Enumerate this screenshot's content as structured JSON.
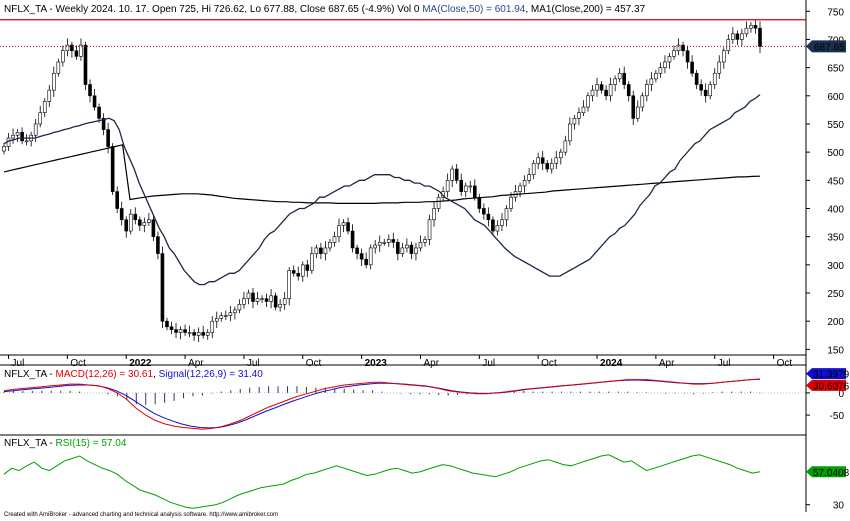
{
  "footer": "Created with AmiBroker - advanced charting and technical analysis software. http://www.amibroker.com",
  "colors": {
    "bull": "#ffffff",
    "bear": "#000000",
    "ma50": "#1a2a44",
    "ma200": "#000000",
    "resistance": "#e00000",
    "last_price_marker": "#1a3050",
    "macd": "#e00000",
    "signal": "#1010d0",
    "histogram": "#2a3a60",
    "rsi": "#00a000",
    "rsi_marker": "#00a000"
  },
  "chart_data": [
    {
      "type": "candlestick",
      "symbol": "NFLX_TA",
      "header": {
        "prefix": "NFLX_TA - Weekly 2024. 10. 17. Open 725, Hi 726.62, Lo 677.88, Close 687.65 (-4.9%) Vol 0 ",
        "ma50_text": "MA(Close,50) = 601.94",
        "ma200_text": ", MA1(Close,200) = 457.37"
      },
      "last_price_label": "687.65",
      "resistance_level": 735,
      "ylim": [
        140,
        770
      ],
      "y_ticks": [
        150,
        200,
        250,
        300,
        350,
        400,
        450,
        500,
        550,
        600,
        650,
        700,
        750
      ],
      "x_labels": [
        {
          "label": "Jul",
          "i": 1,
          "bold": false
        },
        {
          "label": "Oct",
          "i": 14,
          "bold": false
        },
        {
          "label": "2022",
          "i": 27,
          "bold": true
        },
        {
          "label": "Apr",
          "i": 40,
          "bold": false
        },
        {
          "label": "Jul",
          "i": 53,
          "bold": false
        },
        {
          "label": "Oct",
          "i": 66,
          "bold": false
        },
        {
          "label": "2023",
          "i": 79,
          "bold": true
        },
        {
          "label": "Apr",
          "i": 92,
          "bold": false
        },
        {
          "label": "Jul",
          "i": 105,
          "bold": false
        },
        {
          "label": "Oct",
          "i": 118,
          "bold": false
        },
        {
          "label": "2024",
          "i": 131,
          "bold": true
        },
        {
          "label": "Apr",
          "i": 144,
          "bold": false
        },
        {
          "label": "Jul",
          "i": 157,
          "bold": false
        },
        {
          "label": "Oct",
          "i": 170,
          "bold": false
        }
      ],
      "close": [
        510,
        525,
        530,
        535,
        520,
        520,
        530,
        550,
        570,
        590,
        610,
        640,
        660,
        680,
        690,
        680,
        670,
        690,
        620,
        600,
        580,
        560,
        540,
        510,
        430,
        400,
        380,
        360,
        390,
        380,
        370,
        375,
        380,
        350,
        320,
        200,
        190,
        185,
        180,
        185,
        180,
        180,
        175,
        180,
        175,
        180,
        200,
        205,
        210,
        210,
        215,
        220,
        230,
        240,
        250,
        235,
        240,
        240,
        235,
        245,
        225,
        230,
        240,
        290,
        285,
        280,
        300,
        290,
        320,
        330,
        320,
        330,
        340,
        350,
        370,
        375,
        360,
        330,
        320,
        310,
        300,
        330,
        335,
        340,
        340,
        345,
        340,
        320,
        330,
        335,
        320,
        330,
        340,
        345,
        380,
        400,
        420,
        430,
        450,
        470,
        450,
        430,
        440,
        440,
        420,
        400,
        390,
        380,
        360,
        370,
        380,
        400,
        420,
        430,
        440,
        450,
        460,
        480,
        490,
        480,
        470,
        480,
        490,
        500,
        520,
        550,
        560,
        570,
        580,
        600,
        610,
        620,
        610,
        600,
        620,
        630,
        640,
        620,
        600,
        560,
        580,
        600,
        620,
        630,
        640,
        650,
        660,
        670,
        680,
        690,
        680,
        660,
        640,
        620,
        610,
        600,
        620,
        640,
        660,
        680,
        700,
        710,
        700,
        710,
        720,
        725,
        720,
        687.65
      ],
      "ma50": [
        515,
        520,
        522,
        525,
        525,
        525,
        525,
        527,
        530,
        532,
        535,
        537,
        540,
        542,
        545,
        547,
        550,
        552,
        554,
        556,
        558,
        560,
        556,
        540,
        510,
        490,
        470,
        445,
        425,
        405,
        385,
        365,
        350,
        330,
        320,
        305,
        290,
        280,
        270,
        265,
        265,
        270,
        270,
        275,
        280,
        285,
        285,
        290,
        300,
        310,
        320,
        330,
        345,
        355,
        360,
        370,
        380,
        390,
        395,
        400,
        400,
        405,
        410,
        420,
        420,
        425,
        430,
        435,
        440,
        440,
        445,
        450,
        450,
        455,
        460,
        460,
        460,
        460,
        455,
        455,
        450,
        450,
        445,
        445,
        440,
        440,
        435,
        430,
        420,
        415,
        410,
        405,
        400,
        390,
        380,
        375,
        370,
        360,
        350,
        340,
        330,
        322,
        315,
        310,
        305,
        300,
        295,
        290,
        285,
        280,
        280,
        280,
        285,
        290,
        295,
        300,
        305,
        310,
        320,
        330,
        340,
        350,
        355,
        365,
        370,
        380,
        390,
        405,
        415,
        425,
        440,
        445,
        455,
        465,
        470,
        485,
        495,
        505,
        515,
        520,
        530,
        540,
        545,
        550,
        555,
        560,
        570,
        575,
        580,
        590,
        595,
        601.94
      ],
      "ma200": [
        465,
        468,
        471,
        474,
        477,
        480,
        483,
        486,
        489,
        492,
        495,
        498,
        501,
        504,
        507,
        510,
        513,
        416,
        418,
        420,
        422,
        423,
        424,
        425,
        426,
        426,
        426,
        425,
        424,
        422,
        420,
        418,
        417,
        416,
        415,
        414,
        413,
        412,
        412,
        411,
        411,
        410,
        410,
        410,
        410,
        409,
        409,
        409,
        409,
        409,
        409,
        410,
        410,
        410,
        411,
        411,
        411,
        412,
        412,
        413,
        414,
        415,
        417,
        418,
        419,
        420,
        421,
        423,
        424,
        425,
        426,
        427,
        428,
        429,
        431,
        432,
        433,
        434,
        435,
        436,
        437,
        438,
        439,
        440,
        441,
        442,
        443,
        444,
        445,
        446,
        447,
        448,
        449,
        450,
        451,
        452,
        453,
        454,
        455,
        456,
        456,
        457,
        457.37
      ],
      "panes": [
        {
          "id": "macd",
          "title_prefix": "NFLX_TA - ",
          "macd_text": "MACD(12,26) = 30.61",
          "signal_text": "Signal(12,26,9) = 31.40",
          "ylim": [
            -95,
            45
          ],
          "y_ticks": [
            -50,
            0
          ],
          "macd_label": "30.6076",
          "signal_label": "31.3979",
          "macd": [
            5,
            8,
            10,
            12,
            14,
            16,
            18,
            20,
            20,
            18,
            16,
            10,
            0,
            -15,
            -35,
            -50,
            -62,
            -70,
            -75,
            -78,
            -80,
            -82,
            -80,
            -76,
            -70,
            -62,
            -52,
            -42,
            -32,
            -24,
            -16,
            -8,
            -2,
            4,
            10,
            14,
            18,
            20,
            22,
            24,
            24,
            22,
            20,
            18,
            16,
            14,
            10,
            5,
            2,
            0,
            -2,
            -2,
            0,
            2,
            5,
            8,
            10,
            12,
            14,
            16,
            18,
            20,
            22,
            24,
            26,
            28,
            30,
            30,
            30,
            28,
            26,
            24,
            22,
            20,
            20,
            22,
            24,
            26,
            28,
            30,
            30.61
          ],
          "signal": [
            3,
            5,
            7,
            9,
            11,
            13,
            15,
            17,
            18,
            18,
            16,
            12,
            5,
            -5,
            -18,
            -32,
            -45,
            -55,
            -63,
            -70,
            -75,
            -78,
            -79,
            -78,
            -74,
            -68,
            -60,
            -51,
            -42,
            -34,
            -26,
            -18,
            -11,
            -4,
            2,
            7,
            12,
            15,
            18,
            20,
            22,
            22,
            21,
            20,
            18,
            16,
            13,
            9,
            5,
            2,
            0,
            -1,
            -1,
            0,
            2,
            5,
            8,
            10,
            12,
            14,
            16,
            18,
            20,
            22,
            24,
            26,
            28,
            29,
            29,
            28,
            27,
            25,
            23,
            22,
            21,
            21,
            22,
            24,
            26,
            28,
            30,
            31.4
          ]
        },
        {
          "id": "rsi",
          "title_prefix": "NFLX_TA - ",
          "rsi_text": "RSI(15) = 57.04",
          "ylim": [
            24,
            84
          ],
          "y_ticks": [
            30
          ],
          "rsi_label": "57.0408",
          "rsi": [
            55,
            60,
            58,
            62,
            65,
            60,
            58,
            62,
            66,
            68,
            70,
            66,
            63,
            60,
            58,
            55,
            50,
            46,
            42,
            40,
            38,
            35,
            32,
            30,
            28,
            27,
            28,
            29,
            30,
            32,
            35,
            38,
            40,
            42,
            44,
            45,
            46,
            47,
            50,
            52,
            55,
            56,
            58,
            60,
            62,
            60,
            58,
            56,
            54,
            55,
            57,
            59,
            60,
            58,
            56,
            57,
            59,
            61,
            63,
            62,
            60,
            58,
            56,
            55,
            54,
            53,
            55,
            57,
            60,
            62,
            64,
            66,
            67,
            65,
            63,
            62,
            64,
            66,
            68,
            70,
            71,
            68,
            65,
            66,
            62,
            58,
            60,
            62,
            64,
            66,
            68,
            70,
            71,
            69,
            67,
            65,
            63,
            60,
            58,
            56,
            57.04
          ]
        }
      ]
    }
  ]
}
